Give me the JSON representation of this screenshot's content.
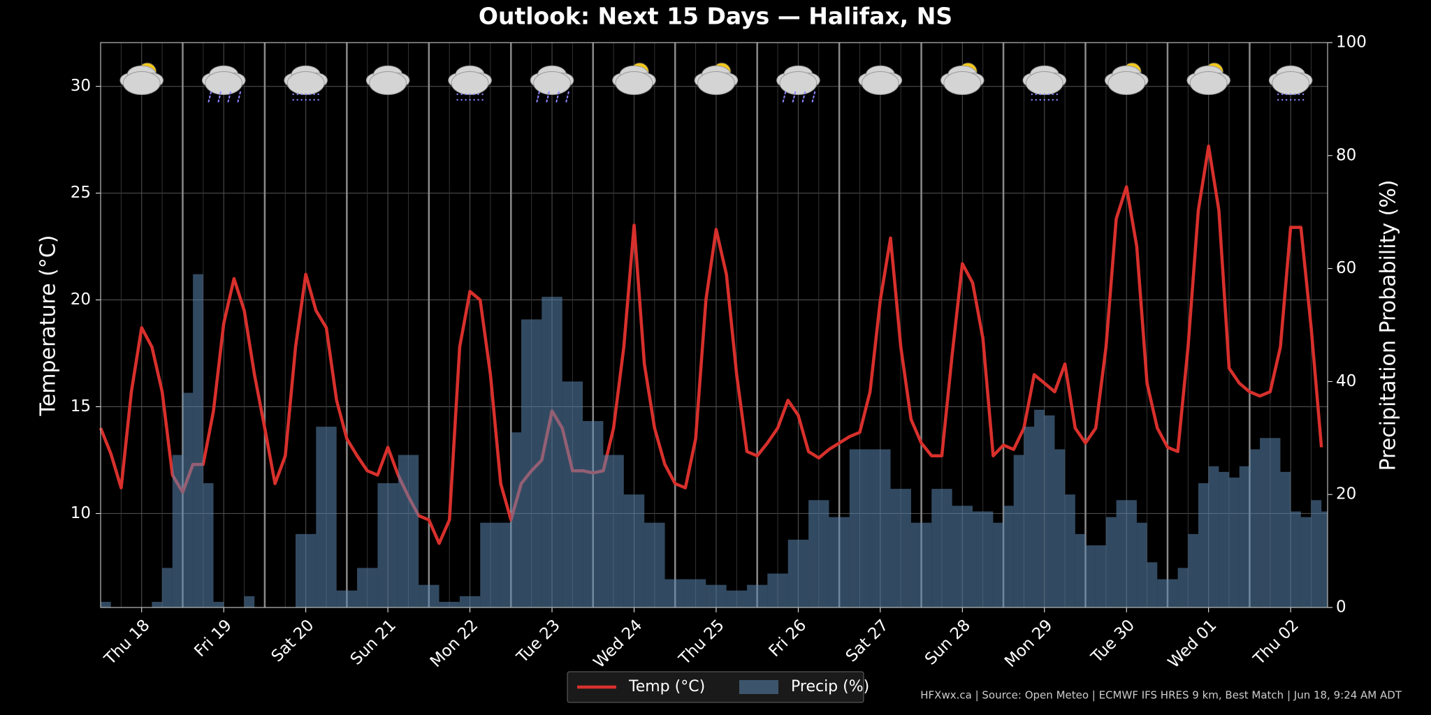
{
  "chart_data": {
    "type": "line",
    "title": "Outlook: Next 15 Days — Halifax, NS",
    "ylabel": "Temperature (°C)",
    "y2label": "Precipitation Probability (%)",
    "footer": "HFXwx.ca | Source: Open Meteo | ECMWF IFS HRES 9 km, Best Match | Jun 18, 9:24 AM ADT",
    "xlim": [
      0,
      119.6
    ],
    "xticks": [
      {
        "value": 4,
        "label": "Thu 18"
      },
      {
        "value": 12,
        "label": "Fri 19"
      },
      {
        "value": 20,
        "label": "Sat 20"
      },
      {
        "value": 28,
        "label": "Sun 21"
      },
      {
        "value": 36,
        "label": "Mon 22"
      },
      {
        "value": 44,
        "label": "Tue 23"
      },
      {
        "value": 52,
        "label": "Wed 24"
      },
      {
        "value": 60,
        "label": "Thu 25"
      },
      {
        "value": 68,
        "label": "Fri 26"
      },
      {
        "value": 76,
        "label": "Sat 27"
      },
      {
        "value": 84,
        "label": "Sun 28"
      },
      {
        "value": 92,
        "label": "Mon 29"
      },
      {
        "value": 100,
        "label": "Tue 30"
      },
      {
        "value": 108,
        "label": "Wed 01"
      },
      {
        "value": 116,
        "label": "Thu 02"
      }
    ],
    "ylim": [
      5.6,
      32.05
    ],
    "yticks": [
      10,
      15,
      20,
      25,
      30
    ],
    "y2lim": [
      0,
      100
    ],
    "y2ticks": [
      0,
      20,
      40,
      60,
      80,
      100
    ],
    "grid": true,
    "legend": "bottom",
    "series": [
      {
        "name": "Temp (°C)",
        "type": "line",
        "axis": "y",
        "color": "#d8302c",
        "values": [
          14.0,
          12.8,
          11.2,
          15.7,
          18.7,
          17.8,
          15.7,
          11.8,
          11.0,
          12.3,
          12.3,
          14.8,
          18.9,
          21.0,
          19.5,
          16.5,
          14.0,
          11.4,
          12.7,
          17.8,
          21.2,
          19.5,
          18.7,
          15.3,
          13.5,
          12.7,
          12.0,
          11.8,
          13.1,
          11.8,
          10.8,
          9.9,
          9.7,
          8.6,
          9.7,
          17.8,
          20.4,
          20.0,
          16.5,
          11.4,
          9.7,
          11.4,
          12.0,
          12.5,
          14.8,
          14.0,
          12.0,
          12.0,
          11.9,
          12.0,
          14.0,
          17.8,
          23.5,
          17.0,
          14.0,
          12.3,
          11.4,
          11.2,
          13.5,
          20.0,
          23.3,
          21.2,
          16.5,
          12.9,
          12.7,
          13.3,
          14.0,
          15.3,
          14.6,
          12.9,
          12.6,
          13.0,
          13.3,
          13.6,
          13.8,
          15.7,
          20.0,
          22.9,
          17.8,
          14.4,
          13.3,
          12.7,
          12.7,
          17.4,
          21.7,
          20.8,
          18.2,
          12.7,
          13.2,
          13.0,
          14.0,
          16.5,
          16.1,
          15.7,
          17.0,
          14.0,
          13.3,
          14.0,
          17.8,
          23.8,
          25.3,
          22.5,
          16.1,
          14.0,
          13.1,
          12.9,
          17.8,
          24.2,
          27.2,
          24.2,
          16.8,
          16.1,
          15.7,
          15.5,
          15.7,
          17.8,
          23.4,
          23.4,
          18.7,
          13.1
        ]
      },
      {
        "name": "Precip (%)",
        "type": "bar",
        "axis": "y2",
        "color": "#5b87b0",
        "values": [
          1,
          0,
          0,
          0,
          0,
          1,
          7,
          27,
          38,
          59,
          22,
          1,
          0,
          0,
          2,
          0,
          0,
          0,
          0,
          13,
          13,
          32,
          32,
          3,
          3,
          7,
          7,
          22,
          22,
          27,
          27,
          4,
          4,
          1,
          1,
          2,
          2,
          15,
          15,
          15,
          31,
          51,
          51,
          55,
          55,
          40,
          40,
          33,
          33,
          27,
          27,
          20,
          20,
          15,
          15,
          5,
          5,
          5,
          5,
          4,
          4,
          3,
          3,
          4,
          4,
          6,
          6,
          12,
          12,
          19,
          19,
          16,
          16,
          28,
          28,
          28,
          28,
          21,
          21,
          15,
          15,
          21,
          21,
          18,
          18,
          17,
          17,
          15,
          18,
          27,
          32,
          35,
          34,
          28,
          20,
          13,
          11,
          11,
          16,
          19,
          19,
          15,
          8,
          5,
          5,
          7,
          13,
          22,
          25,
          24,
          23,
          25,
          28,
          30,
          30,
          24,
          17,
          16,
          19,
          17
        ]
      }
    ]
  }
}
